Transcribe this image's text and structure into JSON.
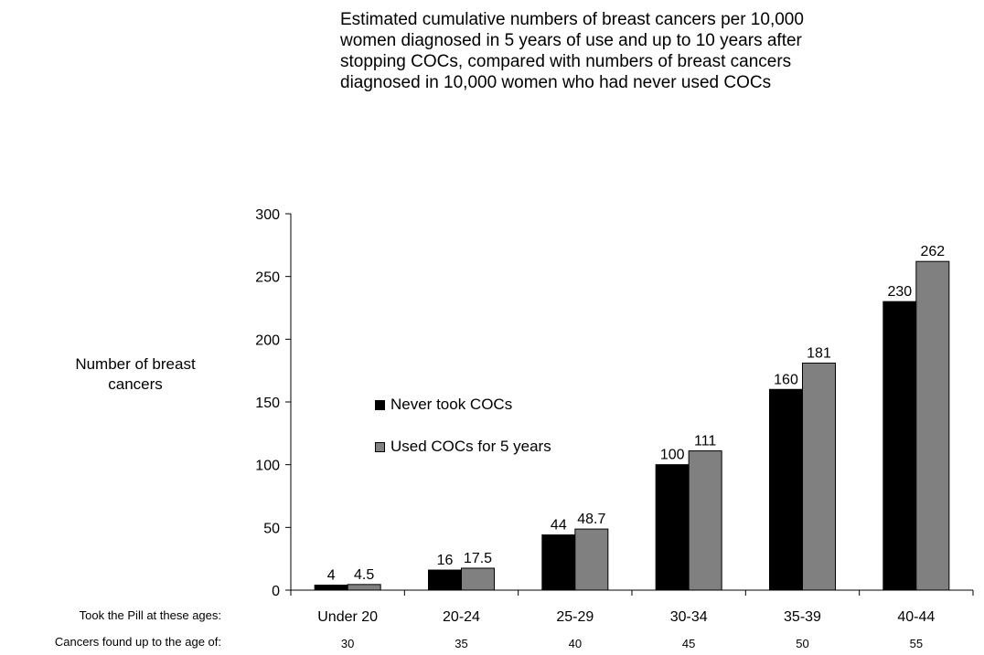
{
  "chart_data": {
    "type": "bar",
    "title": "Estimated cumulative numbers of breast cancers per 10,000\nwomen diagnosed in 5 years of use and up to  10 years after\nstopping COCs, compared with numbers of breast cancers\ndiagnosed in 10,000 women who had never used COCs",
    "ylabel": "Number of breast\ncancers",
    "xlabel": "",
    "row1_label": "Took the Pill at these ages:",
    "row2_label": "Cancers found up to the age of:",
    "categories": [
      "Under 20",
      "20-24",
      "25-29",
      "30-34",
      "35-39",
      "40-44"
    ],
    "secondary_categories": [
      "30",
      "35",
      "40",
      "45",
      "50",
      "55"
    ],
    "series": [
      {
        "name": "Never took COCs",
        "values": [
          4,
          16,
          44,
          100,
          160,
          230
        ],
        "labels": [
          "4",
          "16",
          "44",
          "100",
          "160",
          "230"
        ],
        "color": "#000000"
      },
      {
        "name": "Used COCs for 5 years",
        "values": [
          4.5,
          17.5,
          48.7,
          111,
          181,
          262
        ],
        "labels": [
          "4.5",
          "17.5",
          "48.7",
          "111",
          "181",
          "262"
        ],
        "color": "#808080"
      }
    ],
    "ylim": [
      0,
      300
    ],
    "yticks": [
      "0",
      "50",
      "100",
      "150",
      "200",
      "250",
      "300"
    ],
    "ytick_values": [
      0,
      50,
      100,
      150,
      200,
      250,
      300
    ],
    "grid": false,
    "legend_position": "center-left"
  }
}
